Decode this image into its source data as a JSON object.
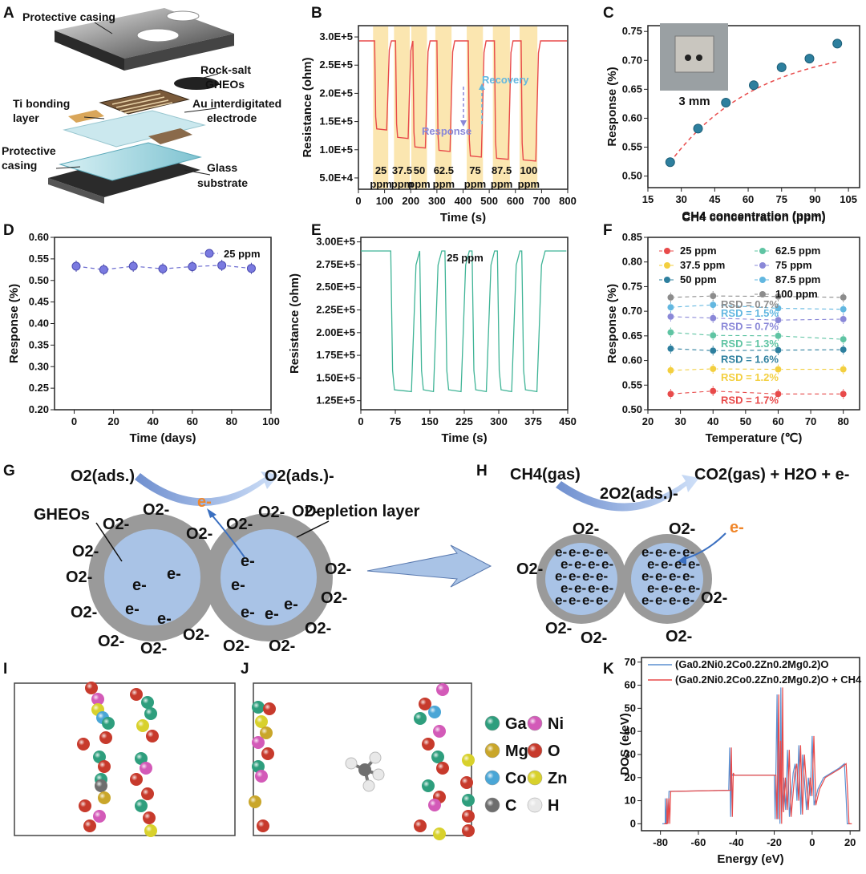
{
  "panel_letters": [
    "A",
    "B",
    "C",
    "D",
    "E",
    "F",
    "G",
    "H",
    "I",
    "J",
    "K"
  ],
  "panel_a": {
    "labels": [
      "Protective casing",
      "Rock-salt",
      "GHEOs",
      "Au interdigitated",
      "electrode",
      "Ti bonding",
      "layer",
      "Protective",
      "casing",
      "Glass",
      "substrate"
    ]
  },
  "colors": {
    "red": "#e84a4a",
    "blue": "#5aa0d6",
    "teal": "#3fb496",
    "band": "#fbe6b0",
    "gray": "#9a9a9a",
    "core": "#a9c3e6",
    "arrow": "#9db8e6",
    "orange": "#f0862a"
  },
  "chart_data": [
    {
      "panel": "B",
      "type": "line",
      "title": "",
      "xlabel": "Time (s)",
      "ylabel": "Resistance (ohm)",
      "xlim": [
        0,
        800
      ],
      "ylim": [
        30000,
        320000
      ],
      "xticks": [
        "0",
        "100",
        "200",
        "300",
        "400",
        "500",
        "600",
        "700",
        "800"
      ],
      "yticks": [
        "5.0E+4",
        "1.0E+5",
        "1.5E+5",
        "2.0E+5",
        "2.5E+5",
        "3.0E+5"
      ],
      "ytick_values": [
        50000,
        100000,
        150000,
        200000,
        250000,
        300000
      ],
      "series": [
        {
          "name": "resistance",
          "color": "#e84a4a",
          "baseline": 293000,
          "pulses": [
            {
              "start": 62,
              "end": 110,
              "min": 135000
            },
            {
              "start": 142,
              "end": 192,
              "min": 120000
            },
            {
              "start": 208,
              "end": 258,
              "min": 103000
            },
            {
              "start": 300,
              "end": 352,
              "min": 97000
            },
            {
              "start": 420,
              "end": 472,
              "min": 87000
            },
            {
              "start": 520,
              "end": 575,
              "min": 83000
            },
            {
              "start": 622,
              "end": 680,
              "min": 80000
            }
          ]
        }
      ],
      "conc_labels": [
        "25",
        "37.5",
        "50",
        "62.5",
        "75",
        "87.5",
        "100"
      ],
      "unit_label": "ppm",
      "annotations": {
        "response": "Response",
        "recovery": "Recovery"
      }
    },
    {
      "panel": "C",
      "type": "scatter",
      "xlabel": "CH4 concentration (ppm)",
      "ylabel": "Response (%)",
      "xlim": [
        15,
        110
      ],
      "ylim": [
        0.48,
        0.76
      ],
      "xticks": [
        "15",
        "30",
        "45",
        "60",
        "75",
        "90",
        "105"
      ],
      "yticks": [
        "0.50",
        "0.55",
        "0.60",
        "0.65",
        "0.70",
        "0.75"
      ],
      "x": [
        25,
        37.5,
        50,
        62.5,
        75,
        87.5,
        100
      ],
      "y": [
        0.524,
        0.582,
        0.627,
        0.657,
        0.688,
        0.703,
        0.729
      ],
      "inset_label": "3 mm"
    },
    {
      "panel": "D",
      "type": "line",
      "xlabel": "Time (days)",
      "ylabel": "Response (%)",
      "xlim": [
        -10,
        100
      ],
      "ylim": [
        0.2,
        0.6
      ],
      "xticks": [
        "0",
        "20",
        "40",
        "60",
        "80",
        "100"
      ],
      "yticks": [
        "0.20",
        "0.25",
        "0.30",
        "0.35",
        "0.40",
        "0.45",
        "0.50",
        "0.55",
        "0.60"
      ],
      "x": [
        1,
        15,
        30,
        45,
        60,
        75,
        90
      ],
      "y": [
        0.533,
        0.525,
        0.533,
        0.527,
        0.532,
        0.535,
        0.528
      ],
      "legend": "25 ppm"
    },
    {
      "panel": "E",
      "type": "line",
      "xlabel": "Time (s)",
      "ylabel": "Resistance (ohm)",
      "xlim": [
        0,
        450
      ],
      "ylim": [
        115000,
        305000
      ],
      "xticks": [
        "0",
        "75",
        "150",
        "225",
        "300",
        "375",
        "450"
      ],
      "yticks": [
        "1.25E+5",
        "1.50E+5",
        "1.75E+5",
        "2.00E+5",
        "2.25E+5",
        "2.50E+5",
        "2.75E+5",
        "3.00E+5"
      ],
      "ytick_values": [
        125000,
        150000,
        175000,
        200000,
        225000,
        250000,
        275000,
        300000
      ],
      "series": [
        {
          "name": "25 ppm",
          "color": "#3fb496",
          "baseline": 290000,
          "pulses": [
            {
              "start": 65,
              "end": 112,
              "min": 135000
            },
            {
              "start": 128,
              "end": 160,
              "min": 135000
            },
            {
              "start": 183,
              "end": 220,
              "min": 135000
            },
            {
              "start": 242,
              "end": 275,
              "min": 135000
            },
            {
              "start": 297,
              "end": 330,
              "min": 135000
            },
            {
              "start": 350,
              "end": 385,
              "min": 135000
            }
          ]
        }
      ],
      "title": "25 ppm"
    },
    {
      "panel": "F",
      "type": "scatter",
      "xlabel": "Temperature (℃)",
      "ylabel": "Response (%)",
      "xlim": [
        20,
        85
      ],
      "ylim": [
        0.5,
        0.85
      ],
      "xticks": [
        "20",
        "30",
        "40",
        "50",
        "60",
        "70",
        "80"
      ],
      "yticks": [
        "0.50",
        "0.55",
        "0.60",
        "0.65",
        "0.70",
        "0.75",
        "0.80",
        "0.85"
      ],
      "x": [
        27,
        40,
        60,
        80
      ],
      "series": [
        {
          "name": "25 ppm",
          "color": "#e84a4a",
          "values": [
            0.532,
            0.538,
            0.532,
            0.532
          ],
          "rsd": "RSD = 1.7%"
        },
        {
          "name": "37.5 ppm",
          "color": "#f3cf3f",
          "values": [
            0.58,
            0.583,
            0.582,
            0.582
          ],
          "rsd": "RSD = 1.2%"
        },
        {
          "name": "50 ppm",
          "color": "#2d7f9e",
          "values": [
            0.624,
            0.62,
            0.621,
            0.622
          ],
          "rsd": "RSD = 1.6%"
        },
        {
          "name": "62.5 ppm",
          "color": "#5fc4a3",
          "values": [
            0.657,
            0.651,
            0.65,
            0.643
          ],
          "rsd": "RSD = 1.3%"
        },
        {
          "name": "75 ppm",
          "color": "#8a88d8",
          "values": [
            0.689,
            0.686,
            0.682,
            0.684
          ],
          "rsd": "RSD = 0.7%"
        },
        {
          "name": "87.5 ppm",
          "color": "#62b7e0",
          "values": [
            0.708,
            0.713,
            0.706,
            0.704
          ],
          "rsd": "RSD = 1.5%"
        },
        {
          "name": "100 ppm",
          "color": "#8c8c8c",
          "values": [
            0.728,
            0.731,
            0.73,
            0.728
          ],
          "rsd": "RSD = 0.7%"
        }
      ]
    },
    {
      "panel": "K",
      "type": "line",
      "xlabel": "Energy (eV)",
      "ylabel": "DOS (e/eV)",
      "xlim": [
        -90,
        25
      ],
      "ylim": [
        -3,
        72
      ],
      "xticks": [
        "-80",
        "-60",
        "-40",
        "-20",
        "0",
        "20"
      ],
      "yticks": [
        "0",
        "10",
        "20",
        "30",
        "40",
        "50",
        "60",
        "70"
      ],
      "series": [
        {
          "name": "(Ga0.2Ni0.2Co0.2Zn0.2Mg0.2)O",
          "color": "#5b8fd0"
        },
        {
          "name": "(Ga0.2Ni0.2Co0.2Zn0.2Mg0.2)O + CH4",
          "color": "#e84a4a"
        }
      ]
    }
  ],
  "panel_g": {
    "o2_left": "O2(ads.)",
    "o2_right": "O2(ads.)-",
    "electron": "e-",
    "gheos": "GHEOs",
    "depletion": "Depletion layer",
    "o2_ion": "O2-"
  },
  "panel_h": {
    "ch4": "CH4(gas)",
    "oxygen": "2O2(ads.)-",
    "products": "CO2(gas) + H2O + e-",
    "electron": "e-"
  },
  "panel_ij": {
    "legend": [
      "Ga",
      "Ni",
      "Mg",
      "O",
      "Co",
      "Zn",
      "C",
      "H"
    ],
    "legend_colors": [
      "#2e9e7d",
      "#d35ab8",
      "#c9a62a",
      "#c73a2c",
      "#4aa6d6",
      "#d8d12c",
      "#6e6e6e",
      "#e8e8e8"
    ]
  }
}
